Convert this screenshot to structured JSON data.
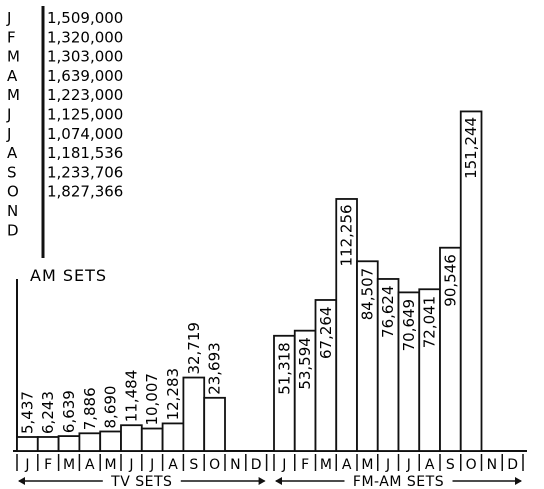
{
  "am_sets": {
    "label": "AM SETS",
    "months": [
      "J",
      "F",
      "M",
      "A",
      "M",
      "J",
      "J",
      "A",
      "S",
      "O",
      "N",
      "D"
    ],
    "values": [
      "1,509,000",
      "1,320,000",
      "1,303,000",
      "1,639,000",
      "1,223,000",
      "1,125,000",
      "1,074,000",
      "1,181,536",
      "1,233,706",
      "1,827,366",
      "",
      ""
    ]
  },
  "chart_data": {
    "type": "bar",
    "categories": [
      "J",
      "F",
      "M",
      "A",
      "M",
      "J",
      "J",
      "A",
      "S",
      "O",
      "N",
      "D"
    ],
    "series": [
      {
        "name": "TV SETS",
        "values": [
          5437,
          6243,
          6639,
          7886,
          8690,
          11484,
          10007,
          12283,
          32719,
          23693,
          null,
          null
        ],
        "labels": [
          "5,437",
          "6,243",
          "6,639",
          "7,886",
          "8,690",
          "11,484",
          "10,007",
          "12,283",
          "32,719",
          "23,693",
          "",
          ""
        ]
      },
      {
        "name": "FM-AM SETS",
        "values": [
          51318,
          53594,
          67264,
          112256,
          84507,
          76624,
          70649,
          72041,
          90546,
          151244,
          null,
          null
        ],
        "labels": [
          "51,318",
          "53,594",
          "67,264",
          "112,256",
          "84,507",
          "76,624",
          "70,649",
          "72,041",
          "90,546",
          "151,244",
          "",
          ""
        ]
      }
    ],
    "ylim": [
      0,
      155000
    ]
  }
}
